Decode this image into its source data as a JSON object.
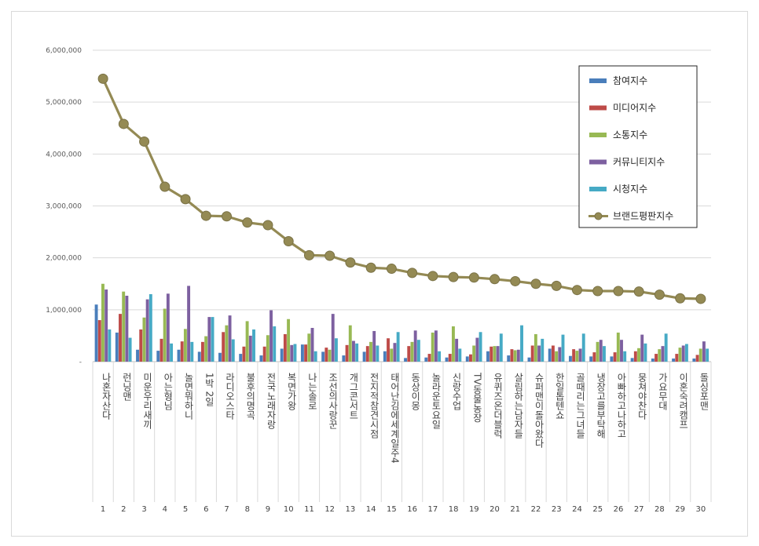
{
  "chart_data": {
    "type": "bar",
    "y_ticks": [
      "6,000,000",
      "5,000,000",
      "4,000,000",
      "3,000,000",
      "2,000,000",
      "1,000,000",
      "-"
    ],
    "ylim": [
      0,
      6000000
    ],
    "numbers": [
      "1",
      "2",
      "3",
      "4",
      "5",
      "6",
      "7",
      "8",
      "9",
      "10",
      "11",
      "12",
      "13",
      "14",
      "15",
      "16",
      "17",
      "18",
      "19",
      "20",
      "21",
      "22",
      "23",
      "24",
      "25",
      "26",
      "27",
      "28",
      "29",
      "30"
    ],
    "categories": [
      "나혼자산다",
      "런닝맨",
      "미운우리새끼",
      "아는형님",
      "놀면뭐하니",
      "1박 2일",
      "라디오스타",
      "불후의명곡",
      "전국노래자랑",
      "복면가왕",
      "나는솔로",
      "조선의사랑꾼",
      "개그콘서트",
      "전지적참견시점",
      "태어난김에세계일주4",
      "동상이몽",
      "놀라운토요일",
      "신랑수업",
      "TV동물농장",
      "유퀴즈온더블럭",
      "살림하는남자들",
      "슈퍼맨이돌아왔다",
      "한일톱텐쇼",
      "골때리는그녀들",
      "냉장고를부탁해",
      "아빠하고나하고",
      "뭉쳐야찬다",
      "가요무대",
      "이혼숙려캠프",
      "돌싱포맨"
    ],
    "legend_position": "top-right",
    "grid": true,
    "series": [
      {
        "name": "참여지수",
        "color": "#4a7ebb",
        "kind": "bar",
        "values": [
          1100000,
          560000,
          230000,
          210000,
          230000,
          190000,
          170000,
          150000,
          120000,
          250000,
          330000,
          190000,
          120000,
          190000,
          200000,
          70000,
          80000,
          80000,
          100000,
          200000,
          120000,
          80000,
          250000,
          110000,
          100000,
          100000,
          70000,
          60000,
          60000,
          60000
        ]
      },
      {
        "name": "미디어지수",
        "color": "#be4b48",
        "kind": "bar",
        "values": [
          800000,
          920000,
          620000,
          440000,
          390000,
          380000,
          570000,
          290000,
          290000,
          530000,
          330000,
          270000,
          320000,
          300000,
          450000,
          300000,
          150000,
          150000,
          140000,
          290000,
          240000,
          310000,
          310000,
          240000,
          180000,
          180000,
          200000,
          150000,
          150000,
          130000
        ]
      },
      {
        "name": "소통지수",
        "color": "#98b954",
        "kind": "bar",
        "values": [
          1500000,
          1350000,
          850000,
          1020000,
          630000,
          490000,
          700000,
          780000,
          510000,
          820000,
          540000,
          230000,
          700000,
          380000,
          250000,
          380000,
          560000,
          680000,
          310000,
          300000,
          220000,
          530000,
          200000,
          210000,
          380000,
          560000,
          260000,
          240000,
          270000,
          250000
        ]
      },
      {
        "name": "커뮤니티지수",
        "color": "#7d60a0",
        "kind": "bar",
        "values": [
          1390000,
          1270000,
          1200000,
          1310000,
          1460000,
          860000,
          890000,
          500000,
          990000,
          320000,
          650000,
          920000,
          400000,
          590000,
          360000,
          600000,
          600000,
          440000,
          460000,
          300000,
          230000,
          310000,
          280000,
          250000,
          420000,
          420000,
          520000,
          300000,
          310000,
          390000
        ]
      },
      {
        "name": "시청지수",
        "color": "#46aac5",
        "kind": "bar",
        "values": [
          620000,
          460000,
          1300000,
          350000,
          380000,
          860000,
          430000,
          620000,
          680000,
          340000,
          200000,
          450000,
          350000,
          310000,
          570000,
          420000,
          200000,
          250000,
          570000,
          540000,
          700000,
          440000,
          520000,
          540000,
          300000,
          200000,
          350000,
          540000,
          340000,
          250000
        ]
      },
      {
        "name": "브랜드평판지수",
        "color": "#948a54",
        "kind": "line",
        "values": [
          5450000,
          4580000,
          4240000,
          3370000,
          3130000,
          2810000,
          2800000,
          2680000,
          2630000,
          2320000,
          2050000,
          2040000,
          1910000,
          1810000,
          1790000,
          1710000,
          1650000,
          1630000,
          1620000,
          1590000,
          1550000,
          1500000,
          1460000,
          1380000,
          1360000,
          1360000,
          1350000,
          1290000,
          1220000,
          1210000
        ]
      }
    ]
  }
}
